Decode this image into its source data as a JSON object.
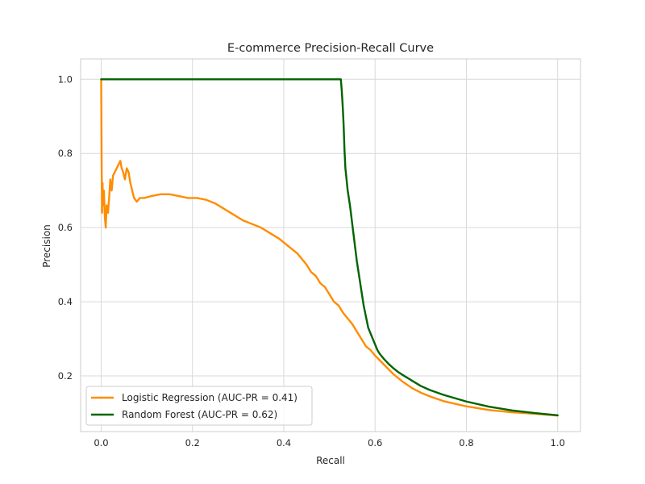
{
  "chart_data": {
    "type": "line",
    "title": "E-commerce Precision-Recall Curve",
    "xlabel": "Recall",
    "ylabel": "Precision",
    "xlim": [
      -0.045,
      1.05
    ],
    "ylim": [
      0.05,
      1.055
    ],
    "xticks": [
      0.0,
      0.2,
      0.4,
      0.6,
      0.8,
      1.0
    ],
    "xtick_labels": [
      "0.0",
      "0.2",
      "0.4",
      "0.6",
      "0.8",
      "1.0"
    ],
    "yticks": [
      0.2,
      0.4,
      0.6,
      0.8,
      1.0
    ],
    "ytick_labels": [
      "0.2",
      "0.4",
      "0.6",
      "0.8",
      "1.0"
    ],
    "grid": true,
    "legend_position": "lower-left",
    "series": [
      {
        "name": "Logistic Regression (AUC-PR = 0.41)",
        "color": "#ff8c00",
        "x": [
          0.0,
          0.001,
          0.002,
          0.003,
          0.004,
          0.006,
          0.008,
          0.01,
          0.012,
          0.015,
          0.018,
          0.02,
          0.023,
          0.026,
          0.03,
          0.034,
          0.038,
          0.042,
          0.045,
          0.048,
          0.052,
          0.056,
          0.06,
          0.064,
          0.068,
          0.072,
          0.078,
          0.085,
          0.095,
          0.11,
          0.13,
          0.15,
          0.17,
          0.19,
          0.21,
          0.23,
          0.25,
          0.27,
          0.29,
          0.31,
          0.33,
          0.35,
          0.37,
          0.39,
          0.41,
          0.43,
          0.45,
          0.46,
          0.47,
          0.48,
          0.49,
          0.5,
          0.51,
          0.52,
          0.53,
          0.54,
          0.55,
          0.56,
          0.57,
          0.58,
          0.59,
          0.6,
          0.62,
          0.64,
          0.66,
          0.68,
          0.7,
          0.72,
          0.75,
          0.8,
          0.85,
          0.9,
          0.95,
          1.0
        ],
        "y": [
          1.0,
          0.78,
          0.64,
          0.72,
          0.66,
          0.7,
          0.63,
          0.6,
          0.66,
          0.64,
          0.69,
          0.73,
          0.7,
          0.74,
          0.75,
          0.76,
          0.77,
          0.78,
          0.76,
          0.75,
          0.73,
          0.76,
          0.75,
          0.72,
          0.7,
          0.68,
          0.67,
          0.68,
          0.68,
          0.685,
          0.69,
          0.69,
          0.685,
          0.68,
          0.68,
          0.675,
          0.665,
          0.65,
          0.635,
          0.62,
          0.61,
          0.6,
          0.585,
          0.57,
          0.55,
          0.53,
          0.5,
          0.48,
          0.47,
          0.45,
          0.44,
          0.42,
          0.4,
          0.39,
          0.37,
          0.355,
          0.34,
          0.32,
          0.3,
          0.28,
          0.27,
          0.255,
          0.23,
          0.205,
          0.185,
          0.168,
          0.155,
          0.145,
          0.132,
          0.118,
          0.108,
          0.102,
          0.098,
          0.093
        ]
      },
      {
        "name": "Random Forest (AUC-PR = 0.62)",
        "color": "#006400",
        "x": [
          0.0,
          0.005,
          0.525,
          0.527,
          0.529,
          0.531,
          0.533,
          0.535,
          0.54,
          0.545,
          0.55,
          0.555,
          0.56,
          0.565,
          0.57,
          0.575,
          0.58,
          0.585,
          0.59,
          0.595,
          0.6,
          0.605,
          0.61,
          0.62,
          0.63,
          0.64,
          0.65,
          0.66,
          0.68,
          0.7,
          0.72,
          0.75,
          0.8,
          0.85,
          0.9,
          0.95,
          1.0
        ],
        "y": [
          1.0,
          1.0,
          1.0,
          0.97,
          0.93,
          0.88,
          0.81,
          0.76,
          0.7,
          0.66,
          0.61,
          0.56,
          0.51,
          0.47,
          0.43,
          0.39,
          0.36,
          0.33,
          0.315,
          0.3,
          0.285,
          0.27,
          0.26,
          0.245,
          0.232,
          0.221,
          0.211,
          0.203,
          0.188,
          0.173,
          0.162,
          0.149,
          0.131,
          0.117,
          0.107,
          0.1,
          0.094
        ]
      }
    ]
  }
}
